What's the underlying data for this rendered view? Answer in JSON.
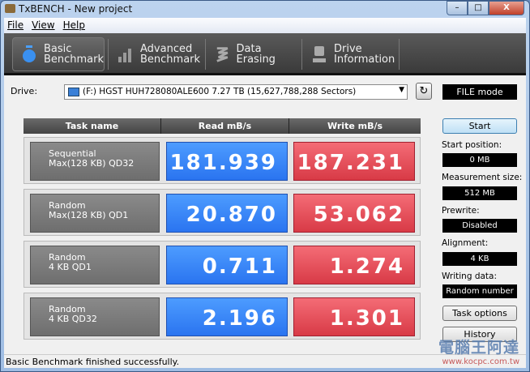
{
  "window": {
    "title": "TxBENCH - New project",
    "minimize": "–",
    "maximize": "□",
    "close": "X"
  },
  "menu": [
    "File",
    "View",
    "Help"
  ],
  "tabs": [
    {
      "label1": "Basic",
      "label2": "Benchmark",
      "icon": "stopwatch-icon",
      "active": true
    },
    {
      "label1": "Advanced",
      "label2": "Benchmark",
      "icon": "bar-chart-icon"
    },
    {
      "label1": "Data Erasing",
      "label2": "",
      "icon": "eraser-icon"
    },
    {
      "label1": "Drive",
      "label2": "Information",
      "icon": "drive-info-icon"
    }
  ],
  "drive": {
    "label": "Drive:",
    "selected": "(F:) HGST HUH728080ALE600  7.27 TB (15,627,788,288 Sectors)",
    "mode": "FILE mode"
  },
  "table": {
    "headers": [
      "Task name",
      "Read mB/s",
      "Write mB/s"
    ],
    "rows": [
      {
        "name1": "Sequential",
        "name2": "Max(128 KB) QD32",
        "read": "181.939",
        "write": "187.231"
      },
      {
        "name1": "Random",
        "name2": "Max(128 KB) QD1",
        "read": "20.870",
        "write": "53.062"
      },
      {
        "name1": "Random",
        "name2": "4 KB QD1",
        "read": "0.711",
        "write": "1.274"
      },
      {
        "name1": "Random",
        "name2": "4 KB QD32",
        "read": "2.196",
        "write": "1.301"
      }
    ]
  },
  "side": {
    "start": "Start",
    "start_position_label": "Start position:",
    "start_position": "0 MB",
    "measurement_size_label": "Measurement size:",
    "measurement_size": "512 MB",
    "prewrite_label": "Prewrite:",
    "prewrite": "Disabled",
    "alignment_label": "Alignment:",
    "alignment": "4 KB",
    "writing_data_label": "Writing data:",
    "writing_data": "Random number",
    "task_options": "Task options",
    "history": "History"
  },
  "status": "Basic Benchmark finished successfully.",
  "watermark": {
    "text": "電腦王阿達",
    "url": "www.kocpc.com.tw"
  },
  "colors": {
    "read": "#2f7cf4",
    "write": "#e04650"
  }
}
